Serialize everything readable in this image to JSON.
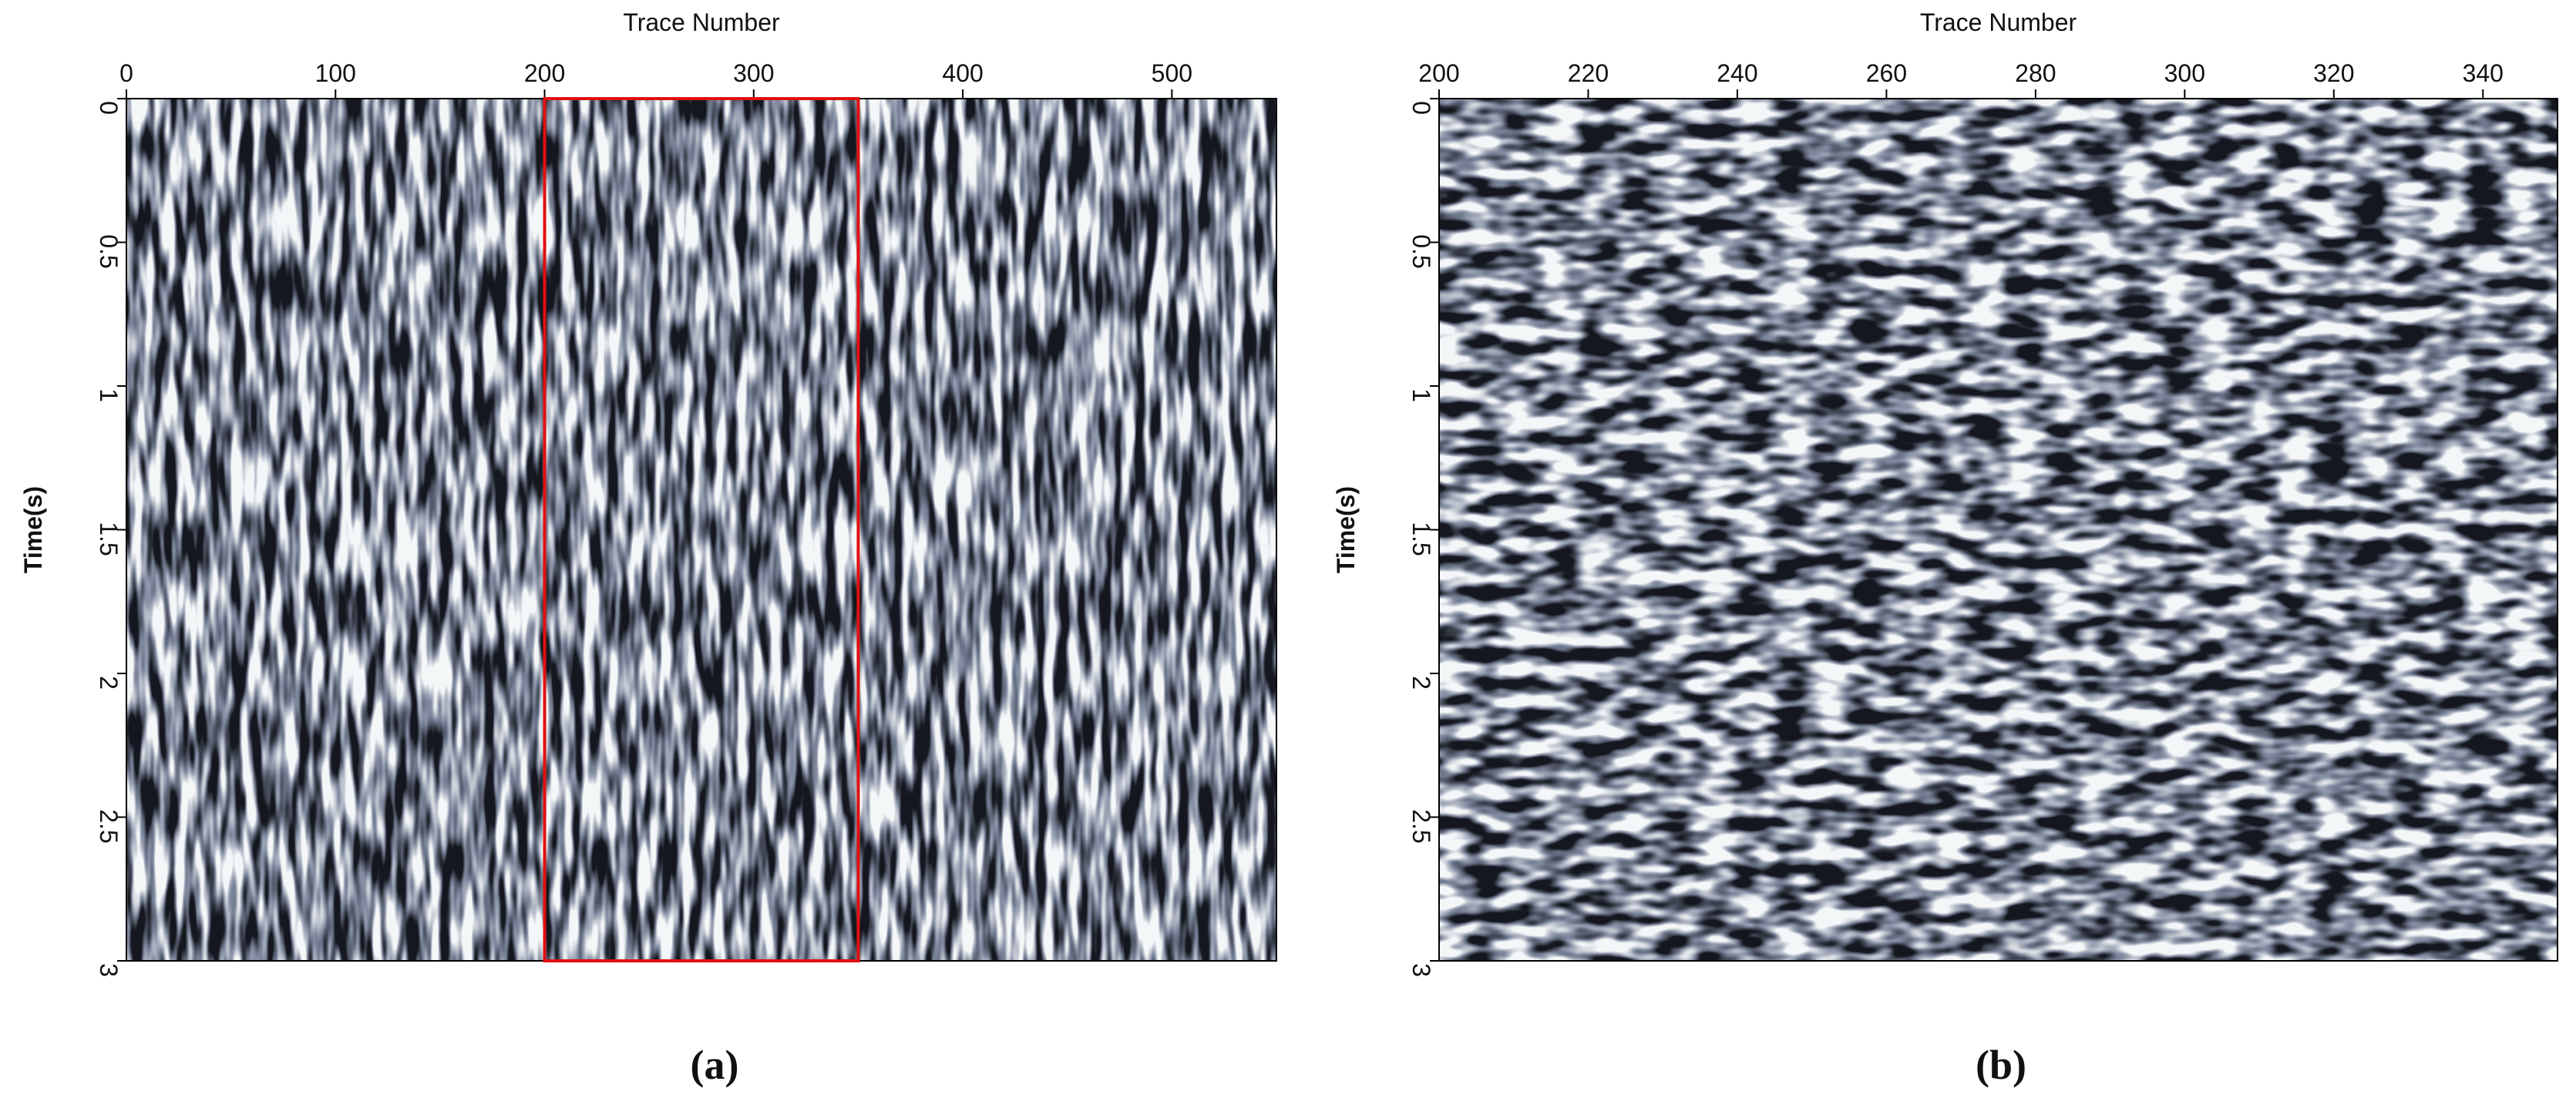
{
  "chart_data": [
    {
      "type": "image",
      "label": "(a)",
      "x_label": "Trace Number",
      "y_label": "Time(s)",
      "xaxis_position": "top",
      "y_inverted": true,
      "xlim": [
        0,
        550
      ],
      "xticks": [
        0,
        100,
        200,
        300,
        400,
        500
      ],
      "ylim": [
        0,
        3
      ],
      "yticks": [
        0,
        0.5,
        1,
        1.5,
        2,
        2.5,
        3
      ],
      "colormap": [
        "#15181f",
        "#7d869c",
        "#f4f7f8"
      ],
      "highlight": {
        "x": [
          200,
          350
        ],
        "y": [
          0,
          3
        ],
        "color": "#e01010"
      }
    },
    {
      "type": "image",
      "label": "(b)",
      "x_label": "Trace Number",
      "y_label": "Time(s)",
      "xaxis_position": "top",
      "y_inverted": true,
      "xlim": [
        200,
        350
      ],
      "xticks": [
        200,
        220,
        240,
        260,
        280,
        300,
        320,
        340
      ],
      "ylim": [
        0,
        3
      ],
      "yticks": [
        0,
        0.5,
        1,
        1.5,
        2,
        2.5,
        3
      ],
      "colormap": [
        "#15181f",
        "#7d869c",
        "#f4f7f8"
      ]
    }
  ]
}
